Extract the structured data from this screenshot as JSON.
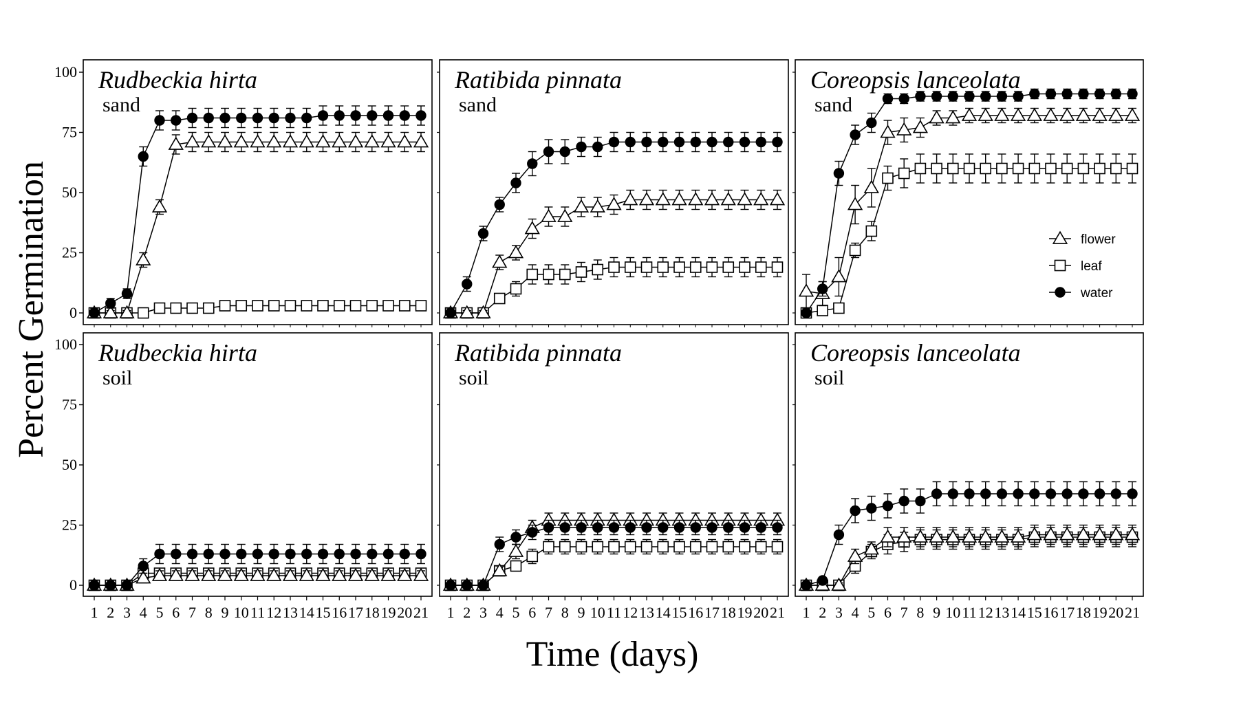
{
  "figure": {
    "ylabel": "Percent Germination",
    "xlabel": "Time (days)"
  },
  "legend": {
    "placement": "right, inside top-right panel",
    "entries": [
      {
        "name": "flower",
        "marker": "open-triangle"
      },
      {
        "name": "leaf",
        "marker": "open-square"
      },
      {
        "name": "water",
        "marker": "filled-circle"
      }
    ]
  },
  "chart_data": [
    {
      "type": "line",
      "title": "Rudbeckia hirta",
      "subtitle": "sand",
      "x": [
        1,
        2,
        3,
        4,
        5,
        6,
        7,
        8,
        9,
        10,
        11,
        12,
        13,
        14,
        15,
        16,
        17,
        18,
        19,
        20,
        21
      ],
      "xticks": [
        "1",
        "2",
        "3",
        "4",
        "5",
        "6",
        "7",
        "8",
        "9",
        "10",
        "11",
        "12",
        "13",
        "14",
        "15",
        "16",
        "17",
        "18",
        "19",
        "20",
        "21"
      ],
      "ylim": [
        0,
        100
      ],
      "yticks": [
        "0",
        "25",
        "50",
        "75",
        "100"
      ],
      "series": [
        {
          "name": "flower",
          "values": [
            0,
            0,
            0,
            22,
            44,
            70,
            71,
            71,
            71,
            71,
            71,
            71,
            71,
            71,
            71,
            71,
            71,
            71,
            71,
            71,
            71
          ],
          "error": [
            2,
            1,
            1,
            3,
            3,
            4,
            4,
            4,
            4,
            4,
            4,
            4,
            4,
            4,
            4,
            4,
            4,
            4,
            4,
            4,
            4
          ]
        },
        {
          "name": "leaf",
          "values": [
            0,
            0,
            0,
            0,
            2,
            2,
            2,
            2,
            3,
            3,
            3,
            3,
            3,
            3,
            3,
            3,
            3,
            3,
            3,
            3,
            3
          ],
          "error": [
            1,
            1,
            1,
            1,
            1,
            1,
            1,
            1,
            1,
            1,
            1,
            1,
            1,
            1,
            1,
            1,
            1,
            1,
            1,
            1,
            1
          ]
        },
        {
          "name": "water",
          "values": [
            0,
            4,
            8,
            65,
            80,
            80,
            81,
            81,
            81,
            81,
            81,
            81,
            81,
            81,
            82,
            82,
            82,
            82,
            82,
            82,
            82
          ],
          "error": [
            2,
            2,
            2,
            4,
            4,
            4,
            4,
            4,
            4,
            4,
            4,
            4,
            4,
            4,
            4,
            4,
            4,
            4,
            4,
            4,
            4
          ]
        }
      ]
    },
    {
      "type": "line",
      "title": "Ratibida pinnata",
      "subtitle": "sand",
      "x": [
        1,
        2,
        3,
        4,
        5,
        6,
        7,
        8,
        9,
        10,
        11,
        12,
        13,
        14,
        15,
        16,
        17,
        18,
        19,
        20,
        21
      ],
      "xticks": [
        "1",
        "2",
        "3",
        "4",
        "5",
        "6",
        "7",
        "8",
        "9",
        "10",
        "11",
        "12",
        "13",
        "14",
        "15",
        "16",
        "17",
        "18",
        "19",
        "20",
        "21"
      ],
      "ylim": [
        0,
        100
      ],
      "yticks": [
        "0",
        "25",
        "50",
        "75",
        "100"
      ],
      "series": [
        {
          "name": "flower",
          "values": [
            0,
            0,
            0,
            21,
            25,
            35,
            40,
            40,
            44,
            44,
            45,
            47,
            47,
            47,
            47,
            47,
            47,
            47,
            47,
            47,
            47
          ],
          "error": [
            2,
            1,
            1,
            3,
            3,
            4,
            4,
            4,
            4,
            4,
            4,
            4,
            4,
            4,
            4,
            4,
            4,
            4,
            4,
            4,
            4
          ]
        },
        {
          "name": "leaf",
          "values": [
            0,
            0,
            0,
            6,
            10,
            16,
            16,
            16,
            17,
            18,
            19,
            19,
            19,
            19,
            19,
            19,
            19,
            19,
            19,
            19,
            19
          ],
          "error": [
            1,
            1,
            1,
            2,
            3,
            4,
            4,
            4,
            4,
            4,
            4,
            4,
            4,
            4,
            4,
            4,
            4,
            4,
            4,
            4,
            4
          ]
        },
        {
          "name": "water",
          "values": [
            0,
            12,
            33,
            45,
            54,
            62,
            67,
            67,
            69,
            69,
            71,
            71,
            71,
            71,
            71,
            71,
            71,
            71,
            71,
            71,
            71
          ],
          "error": [
            2,
            3,
            3,
            3,
            4,
            5,
            5,
            5,
            4,
            4,
            4,
            4,
            4,
            4,
            4,
            4,
            4,
            4,
            4,
            4,
            4
          ]
        }
      ]
    },
    {
      "type": "line",
      "title": "Coreopsis lanceolata",
      "subtitle": "sand",
      "x": [
        1,
        2,
        3,
        4,
        5,
        6,
        7,
        8,
        9,
        10,
        11,
        12,
        13,
        14,
        15,
        16,
        17,
        18,
        19,
        20,
        21
      ],
      "xticks": [
        "1",
        "2",
        "3",
        "4",
        "5",
        "6",
        "7",
        "8",
        "9",
        "10",
        "11",
        "12",
        "13",
        "14",
        "15",
        "16",
        "17",
        "18",
        "19",
        "20",
        "21"
      ],
      "ylim": [
        0,
        100
      ],
      "yticks": [
        "0",
        "25",
        "50",
        "75",
        "100"
      ],
      "series": [
        {
          "name": "flower",
          "values": [
            9,
            8,
            15,
            45,
            52,
            75,
            76,
            77,
            81,
            81,
            82,
            82,
            82,
            82,
            82,
            82,
            82,
            82,
            82,
            82,
            82
          ],
          "error": [
            7,
            5,
            8,
            8,
            8,
            5,
            5,
            4,
            3,
            3,
            3,
            3,
            3,
            3,
            3,
            3,
            3,
            3,
            3,
            3,
            3
          ]
        },
        {
          "name": "leaf",
          "values": [
            0,
            1,
            2,
            26,
            34,
            56,
            58,
            60,
            60,
            60,
            60,
            60,
            60,
            60,
            60,
            60,
            60,
            60,
            60,
            60,
            60
          ],
          "error": [
            1,
            1,
            1,
            3,
            4,
            5,
            6,
            6,
            6,
            6,
            6,
            6,
            6,
            6,
            6,
            6,
            6,
            6,
            6,
            6,
            6
          ]
        },
        {
          "name": "water",
          "values": [
            0,
            10,
            58,
            74,
            79,
            89,
            89,
            90,
            90,
            90,
            90,
            90,
            90,
            90,
            91,
            91,
            91,
            91,
            91,
            91,
            91
          ],
          "error": [
            1,
            3,
            5,
            4,
            4,
            2,
            2,
            2,
            2,
            2,
            2,
            2,
            2,
            2,
            2,
            2,
            2,
            2,
            2,
            2,
            2
          ]
        }
      ]
    },
    {
      "type": "line",
      "title": "Rudbeckia hirta",
      "subtitle": "soil",
      "x": [
        1,
        2,
        3,
        4,
        5,
        6,
        7,
        8,
        9,
        10,
        11,
        12,
        13,
        14,
        15,
        16,
        17,
        18,
        19,
        20,
        21
      ],
      "xticks": [
        "1",
        "2",
        "3",
        "4",
        "5",
        "6",
        "7",
        "8",
        "9",
        "10",
        "11",
        "12",
        "13",
        "14",
        "15",
        "16",
        "17",
        "18",
        "19",
        "20",
        "21"
      ],
      "ylim": [
        0,
        100
      ],
      "yticks": [
        "0",
        "25",
        "50",
        "75",
        "100"
      ],
      "series": [
        {
          "name": "flower",
          "values": [
            0,
            0,
            0,
            3,
            4,
            4,
            4,
            4,
            4,
            4,
            4,
            4,
            4,
            4,
            4,
            4,
            4,
            4,
            4,
            4,
            4
          ],
          "error": [
            1,
            1,
            1,
            2,
            2,
            2,
            2,
            2,
            2,
            2,
            2,
            2,
            2,
            2,
            2,
            2,
            2,
            2,
            2,
            2,
            2
          ]
        },
        {
          "name": "leaf",
          "values": [
            0,
            0,
            0,
            5,
            5,
            5,
            5,
            5,
            5,
            5,
            5,
            5,
            5,
            5,
            5,
            5,
            5,
            5,
            5,
            5,
            5
          ],
          "error": [
            1,
            1,
            1,
            2,
            2,
            2,
            2,
            2,
            2,
            2,
            2,
            2,
            2,
            2,
            2,
            2,
            2,
            2,
            2,
            2,
            2
          ]
        },
        {
          "name": "water",
          "values": [
            0,
            0,
            0,
            8,
            13,
            13,
            13,
            13,
            13,
            13,
            13,
            13,
            13,
            13,
            13,
            13,
            13,
            13,
            13,
            13,
            13
          ],
          "error": [
            2,
            2,
            2,
            3,
            4,
            4,
            4,
            4,
            4,
            4,
            4,
            4,
            4,
            4,
            4,
            4,
            4,
            4,
            4,
            4,
            4
          ]
        }
      ]
    },
    {
      "type": "line",
      "title": "Ratibida pinnata",
      "subtitle": "soil",
      "x": [
        1,
        2,
        3,
        4,
        5,
        6,
        7,
        8,
        9,
        10,
        11,
        12,
        13,
        14,
        15,
        16,
        17,
        18,
        19,
        20,
        21
      ],
      "xticks": [
        "1",
        "2",
        "3",
        "4",
        "5",
        "6",
        "7",
        "8",
        "9",
        "10",
        "11",
        "12",
        "13",
        "14",
        "15",
        "16",
        "17",
        "18",
        "19",
        "20",
        "21"
      ],
      "ylim": [
        0,
        100
      ],
      "yticks": [
        "0",
        "25",
        "50",
        "75",
        "100"
      ],
      "series": [
        {
          "name": "flower",
          "values": [
            0,
            0,
            0,
            6,
            14,
            24,
            27,
            27,
            27,
            27,
            27,
            27,
            27,
            27,
            27,
            27,
            27,
            27,
            27,
            27,
            27
          ],
          "error": [
            1,
            1,
            1,
            2,
            3,
            3,
            3,
            3,
            3,
            3,
            3,
            3,
            3,
            3,
            3,
            3,
            3,
            3,
            3,
            3,
            3
          ]
        },
        {
          "name": "leaf",
          "values": [
            0,
            0,
            0,
            6,
            8,
            12,
            16,
            16,
            16,
            16,
            16,
            16,
            16,
            16,
            16,
            16,
            16,
            16,
            16,
            16,
            16
          ],
          "error": [
            1,
            1,
            1,
            2,
            2,
            3,
            3,
            3,
            3,
            3,
            3,
            3,
            3,
            3,
            3,
            3,
            3,
            3,
            3,
            3,
            3
          ]
        },
        {
          "name": "water",
          "values": [
            0,
            0,
            0,
            17,
            20,
            22,
            24,
            24,
            24,
            24,
            24,
            24,
            24,
            24,
            24,
            24,
            24,
            24,
            24,
            24,
            24
          ],
          "error": [
            1,
            1,
            1,
            3,
            3,
            3,
            3,
            3,
            3,
            3,
            3,
            3,
            3,
            3,
            3,
            3,
            3,
            3,
            3,
            3,
            3
          ]
        }
      ]
    },
    {
      "type": "line",
      "title": "Coreopsis lanceolata",
      "subtitle": "soil",
      "x": [
        1,
        2,
        3,
        4,
        5,
        6,
        7,
        8,
        9,
        10,
        11,
        12,
        13,
        14,
        15,
        16,
        17,
        18,
        19,
        20,
        21
      ],
      "xticks": [
        "1",
        "2",
        "3",
        "4",
        "5",
        "6",
        "7",
        "8",
        "9",
        "10",
        "11",
        "12",
        "13",
        "14",
        "15",
        "16",
        "17",
        "18",
        "19",
        "20",
        "21"
      ],
      "ylim": [
        0,
        100
      ],
      "yticks": [
        "0",
        "25",
        "50",
        "75",
        "100"
      ],
      "series": [
        {
          "name": "flower",
          "values": [
            0,
            0,
            0,
            12,
            15,
            20,
            20,
            20,
            20,
            20,
            20,
            20,
            20,
            20,
            21,
            21,
            21,
            21,
            21,
            21,
            21
          ],
          "error": [
            1,
            1,
            1,
            3,
            3,
            4,
            4,
            4,
            4,
            4,
            4,
            4,
            4,
            4,
            4,
            4,
            4,
            4,
            4,
            4,
            4
          ]
        },
        {
          "name": "leaf",
          "values": [
            0,
            0,
            0,
            8,
            14,
            17,
            18,
            19,
            19,
            19,
            19,
            19,
            19,
            19,
            20,
            20,
            20,
            20,
            20,
            20,
            20
          ],
          "error": [
            1,
            1,
            1,
            3,
            3,
            4,
            4,
            4,
            4,
            4,
            4,
            4,
            4,
            4,
            4,
            4,
            4,
            4,
            4,
            4,
            4
          ]
        },
        {
          "name": "water",
          "values": [
            0,
            2,
            21,
            31,
            32,
            33,
            35,
            35,
            38,
            38,
            38,
            38,
            38,
            38,
            38,
            38,
            38,
            38,
            38,
            38,
            38
          ],
          "error": [
            1,
            1,
            4,
            5,
            5,
            5,
            5,
            5,
            5,
            5,
            5,
            5,
            5,
            5,
            5,
            5,
            5,
            5,
            5,
            5,
            5
          ]
        }
      ]
    }
  ]
}
